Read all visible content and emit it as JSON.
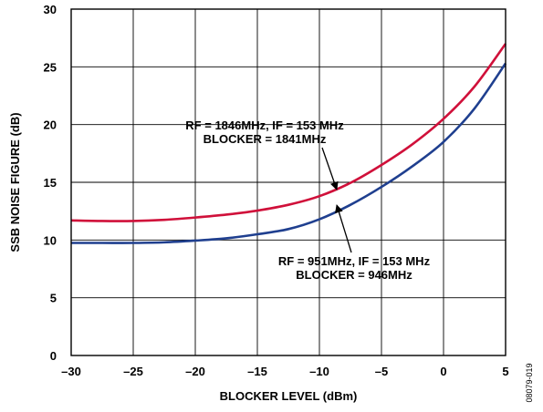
{
  "chart_data": {
    "type": "line",
    "xlabel": "BLOCKER LEVEL (dBm)",
    "ylabel": "SSB NOISE FIGURE (dB)",
    "xlim": [
      -30,
      5
    ],
    "ylim": [
      0,
      30
    ],
    "x_ticks": [
      "–30",
      "–25",
      "–20",
      "–15",
      "–10",
      "–5",
      "0",
      "5"
    ],
    "y_ticks": [
      "0",
      "5",
      "10",
      "15",
      "20",
      "25",
      "30"
    ],
    "grid": true,
    "series": [
      {
        "color": "#d0103a",
        "x": [
          -30,
          -27.5,
          -25,
          -22.5,
          -20,
          -17.5,
          -15,
          -12.5,
          -10,
          -7.5,
          -5,
          -2.5,
          0,
          2.5,
          5
        ],
        "y": [
          11.7,
          11.65,
          11.65,
          11.75,
          11.95,
          12.2,
          12.55,
          13.05,
          13.8,
          14.95,
          16.5,
          18.3,
          20.5,
          23.3,
          27.0
        ]
      },
      {
        "color": "#1f3f8f",
        "x": [
          -30,
          -27.5,
          -25,
          -22.5,
          -20,
          -17.5,
          -15,
          -12.5,
          -10,
          -7.5,
          -5,
          -2.5,
          0,
          2.5,
          5
        ],
        "y": [
          9.75,
          9.75,
          9.75,
          9.8,
          9.95,
          10.15,
          10.5,
          10.95,
          11.8,
          13.05,
          14.6,
          16.4,
          18.5,
          21.4,
          25.3
        ]
      }
    ],
    "annotations": [
      {
        "lines": [
          "RF = 1846MHz, IF = 153 MHz",
          "BLOCKER = 1841MHz"
        ],
        "points_to_series": 0
      },
      {
        "lines": [
          "RF = 951MHz, IF = 153 MHz",
          "BLOCKER = 946MHz"
        ],
        "points_to_series": 1
      }
    ],
    "figure_id": "08079-019"
  }
}
